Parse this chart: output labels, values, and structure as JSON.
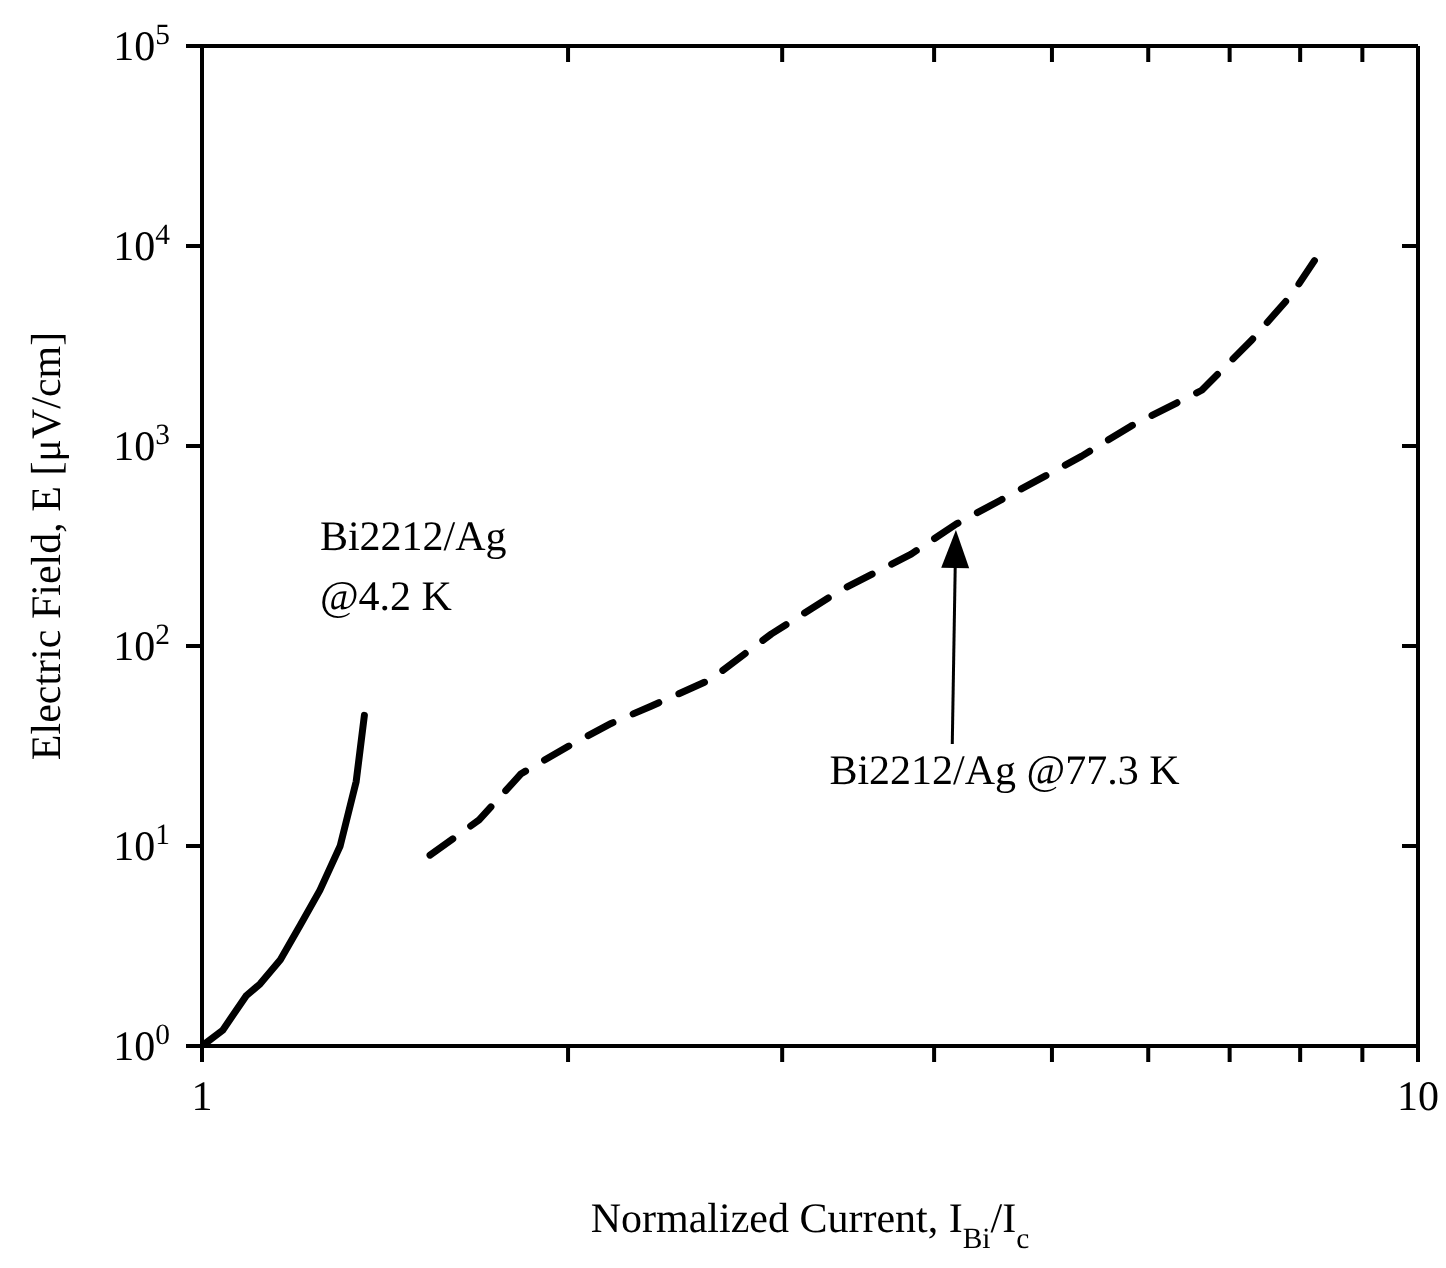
{
  "chart_data": {
    "type": "line",
    "xlabel": "Normalized Current, I$_{Bi}$/I$_{c}$",
    "ylabel": "Electric Field, E [μV/cm]",
    "log": "xy",
    "xlim": [
      1,
      10
    ],
    "ylim": [
      1,
      100000
    ],
    "xticks": [
      1,
      {
        "value": 2,
        "label": null
      },
      {
        "value": 3,
        "label": null
      },
      {
        "value": 4,
        "label": null
      },
      {
        "value": 5,
        "label": null
      },
      {
        "value": 6,
        "label": null
      },
      {
        "value": 7,
        "label": null
      },
      {
        "value": 8,
        "label": null
      },
      {
        "value": 9,
        "label": null
      },
      10
    ],
    "yticks": [
      {
        "value": 1,
        "label": "10$^{0}$"
      },
      {
        "value": 10,
        "label": "10$^{1}$"
      },
      {
        "value": 100,
        "label": "10$^{2}$"
      },
      {
        "value": 1000,
        "label": "10$^{3}$"
      },
      {
        "value": 10000,
        "label": "10$^{4}$"
      },
      {
        "value": 100000,
        "label": "10$^{5}$"
      }
    ],
    "grid": false,
    "marker": "none",
    "series": [
      {
        "color": "#000000",
        "line_style": "solid",
        "x": [
          1.0,
          1.04,
          1.087,
          1.116,
          1.16,
          1.204,
          1.25,
          1.299,
          1.339,
          1.36
        ],
        "values": [
          1.0,
          1.2,
          1.78,
          2.04,
          2.7,
          4.0,
          6.0,
          10,
          21,
          45
        ]
      },
      {
        "color": "#000000",
        "line_style": "dashed",
        "x": [
          1.54,
          1.69,
          1.83,
          2.01,
          2.17,
          2.34,
          2.62,
          2.94,
          3.35,
          3.83,
          4.17,
          4.54,
          5.29,
          5.81,
          6.64,
          7.3,
          7.88,
          8.33
        ],
        "values": [
          9,
          13.5,
          23,
          32,
          41,
          50,
          68,
          115,
          190,
          288,
          407,
          537,
          890,
          1260,
          1900,
          3390,
          5750,
          9550
        ]
      }
    ],
    "annotations": [
      "Bi2212/Ag\n@4.2 K",
      "Bi2212/Ag @77.3 K"
    ]
  }
}
